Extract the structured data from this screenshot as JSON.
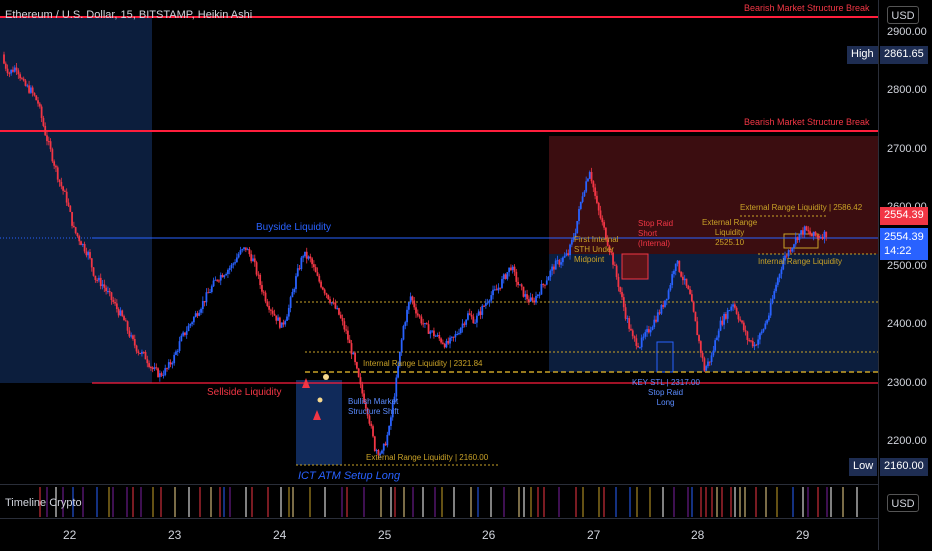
{
  "legend": "Ethereum / U.S. Dollar, 15, BITSTAMP, Heikin Ashi",
  "currency_button": "USD",
  "axis_ticks": [
    "2900.00",
    "2800.00",
    "2700.00",
    "2600.00",
    "2500.00",
    "2400.00",
    "2300.00",
    "2200.00"
  ],
  "high": {
    "label": "High",
    "value": "2861.65"
  },
  "low": {
    "label": "Low",
    "value": "2160.00"
  },
  "last_price": {
    "value": "2554.39",
    "countdown": "14:22",
    "value_red": "2554.39"
  },
  "x_labels": [
    "22",
    "23",
    "24",
    "25",
    "26",
    "27",
    "28",
    "29"
  ],
  "indicator_pane": "Timeline Crypto",
  "annotations": {
    "bearish_top": "Bearish Market Structure Break",
    "bearish_mid": "Bearish Market Structure Break",
    "buyside": "Buyside Liquidity",
    "sellside": "Sellside Liquidity",
    "internal_range_left": "Internal Range Liquidity | 2321.84",
    "external_range_bottom": "External Range Liquidity | 2160.00",
    "bullish_mss": "Bullish Market\nStructure Shift",
    "ict_atm": "ICT ATM Setup Long",
    "first_internal": "First Internal\nSTH Under\nMidpoint",
    "stop_raid_short": "Stop Raid\nShort\n(Internal)",
    "external_range_mid": "External Range\nLiquidity\n2525.10",
    "external_range_top": "External Range Liquidity | 2586.42",
    "internal_range_right": "Internal Range Liquidity",
    "key_stl": "KEY STL | 2317.00",
    "stop_raid_long": "Stop Raid\nLong"
  },
  "colors": {
    "bull": "#2962ff",
    "bear": "#f23645",
    "red_line": "#ff1e3c",
    "blue_line": "#2962ff",
    "dotted": "#c9a227",
    "zone_blue": "#0c1e3d",
    "zone_red": "#3b0d10"
  },
  "chart_data": {
    "type": "candlestick",
    "ylim": [
      2140,
      2940
    ],
    "series_close": [
      2840,
      2820,
      2830,
      2800,
      2790,
      2770,
      2720,
      2680,
      2640,
      2610,
      2560,
      2540,
      2520,
      2480,
      2470,
      2450,
      2430,
      2410,
      2380,
      2360,
      2350,
      2330,
      2320,
      2330,
      2350,
      2380,
      2400,
      2420,
      2440,
      2460,
      2480,
      2490,
      2500,
      2520,
      2530,
      2510,
      2470,
      2440,
      2420,
      2400,
      2430,
      2480,
      2520,
      2510,
      2480,
      2460,
      2440,
      2420,
      2390,
      2350,
      2300,
      2260,
      2200,
      2190,
      2230,
      2310,
      2400,
      2450,
      2420,
      2400,
      2390,
      2380,
      2370,
      2380,
      2400,
      2420,
      2410,
      2430,
      2450,
      2460,
      2480,
      2500,
      2470,
      2450,
      2440,
      2460,
      2480,
      2500,
      2510,
      2520,
      2560,
      2620,
      2660,
      2600,
      2560,
      2520,
      2470,
      2420,
      2380,
      2370,
      2390,
      2410,
      2430,
      2460,
      2510,
      2480,
      2450,
      2390,
      2330,
      2350,
      2400,
      2420,
      2440,
      2410,
      2380,
      2370,
      2390,
      2420,
      2470,
      2510,
      2530,
      2550,
      2560,
      2550,
      2550,
      2554
    ]
  }
}
